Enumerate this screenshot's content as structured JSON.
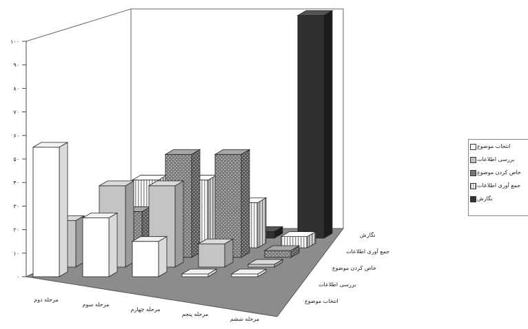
{
  "chart_data": {
    "type": "bar",
    "categories": [
      "مرحله دوم",
      "مرحله سوم",
      "مرحله چهارم",
      "مرحله پنجم",
      "مرحله ششم"
    ],
    "series": [
      {
        "name": "انتخاب موضوع",
        "values": [
          55,
          25,
          15,
          0,
          0
        ],
        "color": "#ffffff"
      },
      {
        "name": "بررسی اطلاعات",
        "values": [
          20,
          35,
          35,
          10,
          0
        ],
        "color": "#c0c0c0"
      },
      {
        "name": "خاص کردن موضوع",
        "values": [
          0,
          20,
          45,
          45,
          3
        ],
        "color": "#808080"
      },
      {
        "name": "جمع آوری اطلاعات",
        "values": [
          0,
          30,
          30,
          20,
          5
        ],
        "color": "#ffffff"
      },
      {
        "name": "نگارش",
        "values": [
          0,
          0,
          0,
          3,
          100
        ],
        "color": "#333333"
      }
    ],
    "yticks": [
      "۰",
      "۱۰",
      "۲۰",
      "۳۰",
      "۴۰",
      "۵۰",
      "۶۰",
      "۷۰",
      "۸۰",
      "۹۰",
      "۱۰۰"
    ],
    "ylim": [
      0,
      100
    ],
    "title": "",
    "xlabel": "",
    "ylabel": "",
    "legend_position": "right"
  }
}
